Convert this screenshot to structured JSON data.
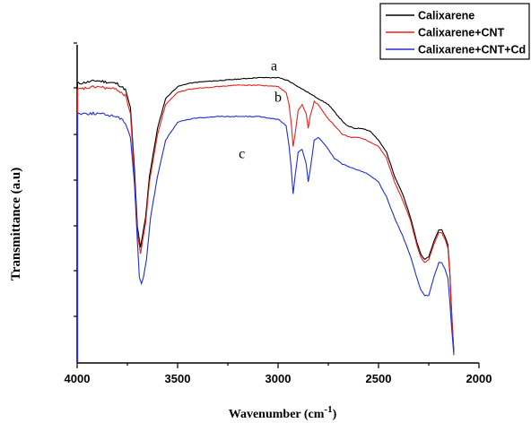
{
  "chart_data": {
    "type": "line",
    "xlabel": "Wavenumber (cm",
    "xlabel_sup": "-1",
    "xlabel_close": ")",
    "ylabel": "Transmittance (a.u)",
    "xlim": [
      4000,
      2000
    ],
    "x_reversed": true,
    "x_ticks": [
      4000,
      3500,
      3000,
      2500,
      2000
    ],
    "y_scale": "arbitrary units",
    "ylim": [
      0,
      100
    ],
    "grid": false,
    "legend_position": "top-right",
    "series": [
      {
        "name": "Calixarene",
        "color": "#000000",
        "points": [
          [
            4000,
            93
          ],
          [
            3900,
            94
          ],
          [
            3800,
            93
          ],
          [
            3760,
            91
          ],
          [
            3735,
            85
          ],
          [
            3715,
            65
          ],
          [
            3700,
            45
          ],
          [
            3685,
            38
          ],
          [
            3675,
            42
          ],
          [
            3660,
            48
          ],
          [
            3640,
            62
          ],
          [
            3600,
            78
          ],
          [
            3560,
            88
          ],
          [
            3500,
            92
          ],
          [
            3450,
            93
          ],
          [
            3400,
            93.5
          ],
          [
            3300,
            94
          ],
          [
            3200,
            94.5
          ],
          [
            3100,
            95
          ],
          [
            3000,
            95
          ],
          [
            2950,
            94
          ],
          [
            2900,
            92
          ],
          [
            2850,
            90
          ],
          [
            2800,
            88
          ],
          [
            2750,
            86
          ],
          [
            2700,
            82
          ],
          [
            2660,
            79
          ],
          [
            2620,
            78
          ],
          [
            2580,
            78
          ],
          [
            2540,
            77
          ],
          [
            2500,
            74
          ],
          [
            2460,
            70
          ],
          [
            2420,
            62
          ],
          [
            2380,
            56
          ],
          [
            2340,
            48
          ],
          [
            2310,
            40
          ],
          [
            2290,
            36
          ],
          [
            2270,
            34
          ],
          [
            2250,
            35
          ],
          [
            2225,
            40
          ],
          [
            2200,
            44
          ],
          [
            2185,
            44
          ],
          [
            2170,
            42
          ],
          [
            2155,
            39
          ],
          [
            2145,
            30
          ],
          [
            2135,
            15
          ],
          [
            2125,
            3
          ]
        ]
      },
      {
        "name": "Calixarene+CNT",
        "color": "#e8211c",
        "points": [
          [
            4000,
            91
          ],
          [
            3900,
            92
          ],
          [
            3800,
            91
          ],
          [
            3760,
            89
          ],
          [
            3735,
            83
          ],
          [
            3715,
            62
          ],
          [
            3700,
            43
          ],
          [
            3685,
            36
          ],
          [
            3675,
            40
          ],
          [
            3660,
            46
          ],
          [
            3640,
            60
          ],
          [
            3600,
            76
          ],
          [
            3560,
            86
          ],
          [
            3500,
            90
          ],
          [
            3450,
            91
          ],
          [
            3400,
            91.5
          ],
          [
            3300,
            92
          ],
          [
            3200,
            92.5
          ],
          [
            3100,
            92.5
          ],
          [
            3000,
            92
          ],
          [
            2960,
            90
          ],
          [
            2945,
            86
          ],
          [
            2935,
            80
          ],
          [
            2925,
            72
          ],
          [
            2915,
            76
          ],
          [
            2900,
            84
          ],
          [
            2880,
            86
          ],
          [
            2860,
            83
          ],
          [
            2850,
            78
          ],
          [
            2840,
            82
          ],
          [
            2820,
            87
          ],
          [
            2800,
            86
          ],
          [
            2760,
            82
          ],
          [
            2720,
            79
          ],
          [
            2680,
            76
          ],
          [
            2640,
            75
          ],
          [
            2600,
            75
          ],
          [
            2560,
            74
          ],
          [
            2500,
            72
          ],
          [
            2460,
            68
          ],
          [
            2420,
            60
          ],
          [
            2380,
            54
          ],
          [
            2340,
            47
          ],
          [
            2310,
            39
          ],
          [
            2290,
            35
          ],
          [
            2270,
            33
          ],
          [
            2250,
            34
          ],
          [
            2225,
            39
          ],
          [
            2200,
            43
          ],
          [
            2185,
            43
          ],
          [
            2170,
            41
          ],
          [
            2155,
            38
          ],
          [
            2145,
            29
          ],
          [
            2135,
            14
          ],
          [
            2125,
            3
          ]
        ]
      },
      {
        "name": "Calixarene+CNT+Cd",
        "color": "#1f2edc",
        "points": [
          [
            4000,
            83
          ],
          [
            3900,
            83
          ],
          [
            3800,
            82
          ],
          [
            3760,
            80
          ],
          [
            3735,
            75
          ],
          [
            3715,
            60
          ],
          [
            3700,
            40
          ],
          [
            3690,
            28
          ],
          [
            3680,
            26
          ],
          [
            3670,
            28
          ],
          [
            3655,
            34
          ],
          [
            3635,
            48
          ],
          [
            3600,
            62
          ],
          [
            3560,
            74
          ],
          [
            3500,
            80
          ],
          [
            3450,
            81
          ],
          [
            3400,
            81.5
          ],
          [
            3300,
            82
          ],
          [
            3200,
            82
          ],
          [
            3100,
            82
          ],
          [
            3000,
            81
          ],
          [
            2960,
            79
          ],
          [
            2945,
            72
          ],
          [
            2935,
            65
          ],
          [
            2925,
            56
          ],
          [
            2915,
            62
          ],
          [
            2900,
            70
          ],
          [
            2880,
            71
          ],
          [
            2860,
            66
          ],
          [
            2850,
            60
          ],
          [
            2840,
            64
          ],
          [
            2820,
            74
          ],
          [
            2800,
            75
          ],
          [
            2760,
            72
          ],
          [
            2720,
            68
          ],
          [
            2680,
            66
          ],
          [
            2640,
            65
          ],
          [
            2600,
            64
          ],
          [
            2560,
            63
          ],
          [
            2500,
            60
          ],
          [
            2460,
            55
          ],
          [
            2420,
            48
          ],
          [
            2380,
            42
          ],
          [
            2340,
            35
          ],
          [
            2310,
            28
          ],
          [
            2290,
            24
          ],
          [
            2270,
            22
          ],
          [
            2250,
            22
          ],
          [
            2225,
            28
          ],
          [
            2200,
            33
          ],
          [
            2185,
            33
          ],
          [
            2170,
            31
          ],
          [
            2155,
            28
          ],
          [
            2145,
            20
          ],
          [
            2135,
            10
          ],
          [
            2125,
            2
          ]
        ]
      }
    ],
    "annotations": [
      {
        "text": "a",
        "x": 3020,
        "y": 97.5
      },
      {
        "text": "b",
        "x": 3000,
        "y": 87
      },
      {
        "text": "c",
        "x": 3180,
        "y": 68
      }
    ]
  }
}
